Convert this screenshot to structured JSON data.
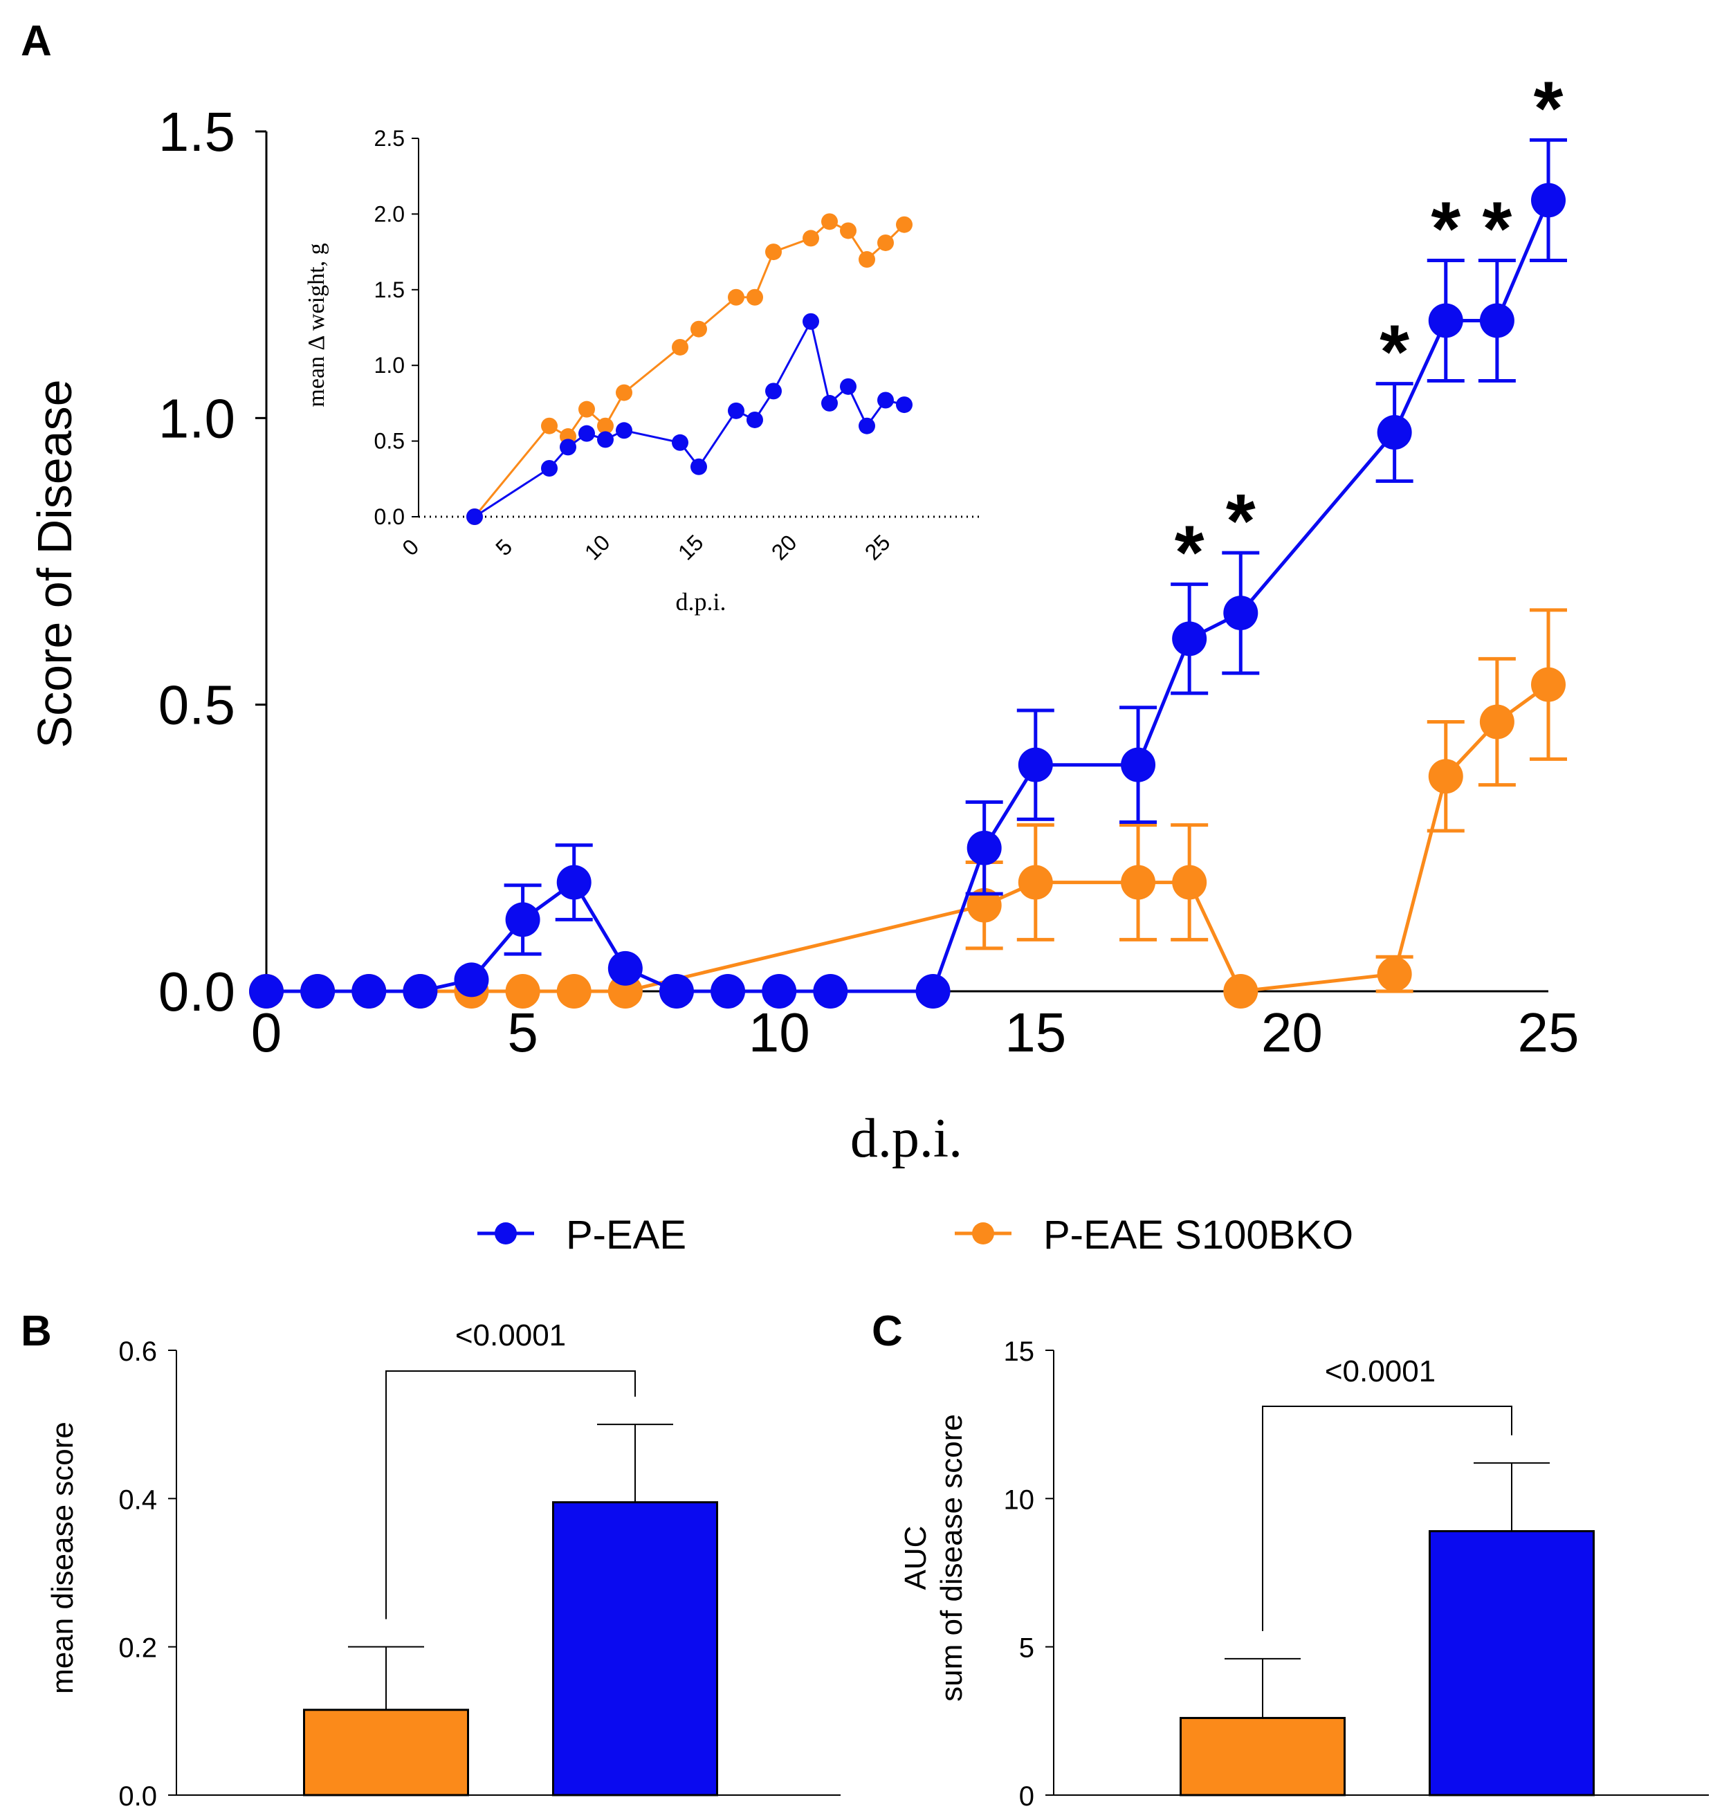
{
  "panels": {
    "a": "A",
    "b": "B",
    "c": "C"
  },
  "colors": {
    "blue": "#0a0af0",
    "orange": "#fb8a1a",
    "axis": "#000000"
  },
  "legend": [
    {
      "label": "P-EAE",
      "color": "#0a0af0"
    },
    {
      "label": "P-EAE S100BKO",
      "color": "#fb8a1a"
    }
  ],
  "chart_data": [
    {
      "id": "A",
      "type": "line",
      "title": "",
      "xlabel": "d.p.i.",
      "ylabel": "Score of Disease",
      "xlim": [
        0,
        25
      ],
      "ylim": [
        0,
        1.5
      ],
      "xticks": [
        "0",
        "5",
        "10",
        "15",
        "20",
        "25"
      ],
      "yticks": [
        "0.0",
        "0.5",
        "1.0",
        "1.5"
      ],
      "significance_marker": "*",
      "significant_days": [
        18,
        19,
        22,
        23,
        24,
        25
      ],
      "series": [
        {
          "name": "P-EAE S100BKO",
          "color": "#fb8a1a",
          "points": [
            {
              "x": 0,
              "y": 0
            },
            {
              "x": 1,
              "y": 0
            },
            {
              "x": 2,
              "y": 0
            },
            {
              "x": 3,
              "y": 0
            },
            {
              "x": 4,
              "y": 0
            },
            {
              "x": 5,
              "y": 0
            },
            {
              "x": 6,
              "y": 0
            },
            {
              "x": 7,
              "y": 0
            },
            {
              "x": 14,
              "y": 0.15,
              "err": 0.075
            },
            {
              "x": 15,
              "y": 0.19,
              "err": 0.1
            },
            {
              "x": 17,
              "y": 0.19,
              "err": 0.1
            },
            {
              "x": 18,
              "y": 0.19,
              "err": 0.1
            },
            {
              "x": 19,
              "y": 0
            },
            {
              "x": 22,
              "y": 0.03,
              "err": 0.03
            },
            {
              "x": 23,
              "y": 0.375,
              "err": 0.095
            },
            {
              "x": 24,
              "y": 0.47,
              "err": 0.11
            },
            {
              "x": 25,
              "y": 0.535,
              "err": 0.13
            }
          ]
        },
        {
          "name": "P-EAE",
          "color": "#0a0af0",
          "points": [
            {
              "x": 0,
              "y": 0
            },
            {
              "x": 1,
              "y": 0
            },
            {
              "x": 2,
              "y": 0
            },
            {
              "x": 3,
              "y": 0
            },
            {
              "x": 4,
              "y": 0.02
            },
            {
              "x": 5,
              "y": 0.125,
              "err": 0.06
            },
            {
              "x": 6,
              "y": 0.19,
              "err": 0.065
            },
            {
              "x": 7,
              "y": 0.04
            },
            {
              "x": 8,
              "y": 0
            },
            {
              "x": 9,
              "y": 0
            },
            {
              "x": 10,
              "y": 0
            },
            {
              "x": 11,
              "y": 0
            },
            {
              "x": 13,
              "y": 0
            },
            {
              "x": 14,
              "y": 0.25,
              "err": 0.08
            },
            {
              "x": 15,
              "y": 0.395,
              "err": 0.095
            },
            {
              "x": 17,
              "y": 0.395,
              "err": 0.1
            },
            {
              "x": 18,
              "y": 0.615,
              "err": 0.095
            },
            {
              "x": 19,
              "y": 0.66,
              "err": 0.105
            },
            {
              "x": 22,
              "y": 0.975,
              "err": 0.085
            },
            {
              "x": 23,
              "y": 1.17,
              "err": 0.105
            },
            {
              "x": 24,
              "y": 1.17,
              "err": 0.105
            },
            {
              "x": 25,
              "y": 1.38,
              "err": 0.105
            }
          ]
        }
      ]
    },
    {
      "id": "A-inset",
      "type": "line",
      "title": "",
      "xlabel": "d.p.i.",
      "ylabel": "mean Δ weight, g",
      "xlim": [
        0,
        30
      ],
      "ylim": [
        0,
        2.5
      ],
      "xticks": [
        "0",
        "5",
        "10",
        "15",
        "20",
        "25"
      ],
      "yticks": [
        "0.0",
        "0.5",
        "1.0",
        "1.5",
        "2.0",
        "2.5"
      ],
      "series": [
        {
          "name": "P-EAE S100BKO",
          "color": "#fb8a1a",
          "points": [
            {
              "x": 3,
              "y": 0
            },
            {
              "x": 7,
              "y": 0.6
            },
            {
              "x": 8,
              "y": 0.53
            },
            {
              "x": 9,
              "y": 0.71
            },
            {
              "x": 10,
              "y": 0.6
            },
            {
              "x": 11,
              "y": 0.82
            },
            {
              "x": 14,
              "y": 1.12
            },
            {
              "x": 15,
              "y": 1.24
            },
            {
              "x": 17,
              "y": 1.45
            },
            {
              "x": 18,
              "y": 1.45
            },
            {
              "x": 19,
              "y": 1.75
            },
            {
              "x": 21,
              "y": 1.84
            },
            {
              "x": 22,
              "y": 1.95
            },
            {
              "x": 23,
              "y": 1.89
            },
            {
              "x": 24,
              "y": 1.7
            },
            {
              "x": 25,
              "y": 1.81
            },
            {
              "x": 26,
              "y": 1.93
            }
          ]
        },
        {
          "name": "P-EAE",
          "color": "#0a0af0",
          "points": [
            {
              "x": 3,
              "y": 0
            },
            {
              "x": 7,
              "y": 0.32
            },
            {
              "x": 8,
              "y": 0.46
            },
            {
              "x": 9,
              "y": 0.55
            },
            {
              "x": 10,
              "y": 0.51
            },
            {
              "x": 11,
              "y": 0.57
            },
            {
              "x": 14,
              "y": 0.49
            },
            {
              "x": 15,
              "y": 0.33
            },
            {
              "x": 17,
              "y": 0.7
            },
            {
              "x": 18,
              "y": 0.64
            },
            {
              "x": 19,
              "y": 0.83
            },
            {
              "x": 21,
              "y": 1.29
            },
            {
              "x": 22,
              "y": 0.75
            },
            {
              "x": 23,
              "y": 0.86
            },
            {
              "x": 24,
              "y": 0.6
            },
            {
              "x": 25,
              "y": 0.77
            },
            {
              "x": 26,
              "y": 0.74
            }
          ]
        }
      ]
    },
    {
      "id": "B",
      "type": "bar",
      "title": "",
      "xlabel": "",
      "ylabel": "mean disease score",
      "ylim": [
        0,
        0.6
      ],
      "yticks": [
        "0.0",
        "0.2",
        "0.4",
        "0.6"
      ],
      "categories": [
        "P-EAE S100BKO",
        "P-EAE"
      ],
      "values": [
        0.115,
        0.395
      ],
      "errors": [
        0.085,
        0.105
      ],
      "colors": [
        "#fb8a1a",
        "#0a0af0"
      ],
      "p_value": "<0.0001"
    },
    {
      "id": "C",
      "type": "bar",
      "title": "",
      "xlabel": "",
      "ylabel_line1": "AUC",
      "ylabel_line2": "sum of disease score",
      "ylim": [
        0,
        15
      ],
      "yticks": [
        "0",
        "5",
        "10",
        "15"
      ],
      "categories": [
        "P-EAE S100BKO",
        "P-EAE"
      ],
      "values": [
        2.6,
        8.9
      ],
      "errors": [
        2.0,
        2.3
      ],
      "colors": [
        "#fb8a1a",
        "#0a0af0"
      ],
      "p_value": "<0.0001"
    }
  ]
}
